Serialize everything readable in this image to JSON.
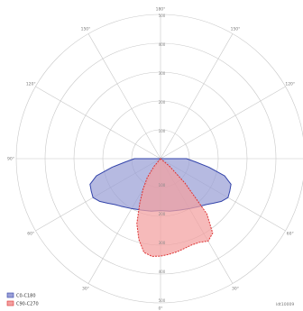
{
  "chart_data": {
    "type": "polar",
    "angle_labels": [
      "180°",
      "150°",
      "120°",
      "90°",
      "60°",
      "30°",
      "0°",
      "30°",
      "60°",
      "90°",
      "120°",
      "150°"
    ],
    "radial_ticks": [
      100,
      200,
      300,
      400,
      500
    ],
    "radial_labels": [
      "100",
      "200",
      "300",
      "400",
      "500"
    ],
    "series": [
      {
        "name": "C0-C180",
        "color": "#3344aa",
        "fill": "#9a9fd6",
        "style": "solid",
        "points": [
          [
            -90,
            90
          ],
          [
            -85,
            120
          ],
          [
            -80,
            170
          ],
          [
            -75,
            230
          ],
          [
            -70,
            260
          ],
          [
            -65,
            265
          ],
          [
            -60,
            270
          ],
          [
            -55,
            258
          ],
          [
            -50,
            240
          ],
          [
            -45,
            225
          ],
          [
            -40,
            215
          ],
          [
            -30,
            200
          ],
          [
            -20,
            190
          ],
          [
            -10,
            185
          ],
          [
            0,
            180
          ],
          [
            10,
            185
          ],
          [
            20,
            190
          ],
          [
            30,
            200
          ],
          [
            40,
            215
          ],
          [
            45,
            225
          ],
          [
            50,
            240
          ],
          [
            55,
            258
          ],
          [
            60,
            270
          ],
          [
            65,
            265
          ],
          [
            70,
            260
          ],
          [
            75,
            230
          ],
          [
            80,
            170
          ],
          [
            85,
            120
          ],
          [
            90,
            90
          ]
        ]
      },
      {
        "name": "C90-C270",
        "color": "#dd3333",
        "fill": "#f2a0a0",
        "style": "dashed",
        "points": [
          [
            -40,
            35
          ],
          [
            -35,
            80
          ],
          [
            -30,
            120
          ],
          [
            -25,
            170
          ],
          [
            -20,
            240
          ],
          [
            -15,
            290
          ],
          [
            -10,
            330
          ],
          [
            -5,
            340
          ],
          [
            0,
            338
          ],
          [
            5,
            333
          ],
          [
            10,
            328
          ],
          [
            15,
            322
          ],
          [
            20,
            318
          ],
          [
            25,
            320
          ],
          [
            30,
            330
          ],
          [
            35,
            315
          ],
          [
            40,
            250
          ],
          [
            45,
            120
          ],
          [
            50,
            40
          ]
        ]
      }
    ],
    "legend": [
      "C0-C180",
      "C90-C270"
    ],
    "legend_position": "bottom-left",
    "footer_id": "ldt10009"
  }
}
